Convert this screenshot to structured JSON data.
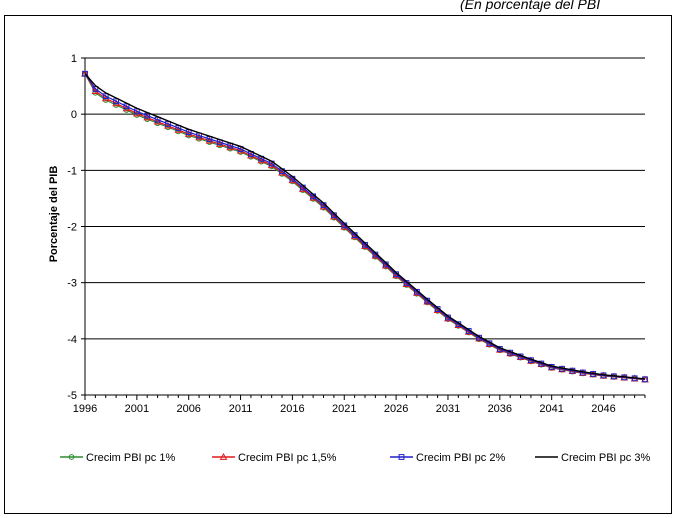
{
  "caption": "(En porcentaje del PBI",
  "chart_data": {
    "type": "line",
    "title": "",
    "xlabel": "",
    "ylabel": "Porcentaje del PIB",
    "xlim": [
      1996,
      2050
    ],
    "ylim": [
      -5,
      1
    ],
    "x_ticks": [
      1996,
      2001,
      2006,
      2011,
      2016,
      2021,
      2026,
      2031,
      2036,
      2041,
      2046
    ],
    "y_ticks": [
      1,
      0,
      -1,
      -2,
      -3,
      -4,
      -5
    ],
    "grid": "horizontal",
    "legend_position": "bottom",
    "anchors": {
      "x": [
        1996,
        1997,
        1998,
        2001,
        2006,
        2011,
        2014,
        2016,
        2019,
        2021,
        2024,
        2026,
        2029,
        2031,
        2034,
        2036,
        2039,
        2041,
        2044,
        2046,
        2050
      ],
      "base": [
        0.72,
        0.45,
        0.32,
        0.05,
        -0.32,
        -0.62,
        -0.88,
        -1.15,
        -1.62,
        -1.98,
        -2.5,
        -2.85,
        -3.32,
        -3.62,
        -3.98,
        -4.18,
        -4.38,
        -4.5,
        -4.6,
        -4.65,
        -4.72
      ]
    },
    "series": [
      {
        "name": "Crecim PBI pc 1%",
        "color": "#2e8b2e",
        "marker": "circle",
        "offset": -0.07
      },
      {
        "name": "Crecim PBI pc 1,5%",
        "color": "#e41a1a",
        "marker": "triangle",
        "offset": -0.04
      },
      {
        "name": "Crecim PBI pc 2%",
        "color": "#1f1fcc",
        "marker": "square",
        "offset": 0.0
      },
      {
        "name": "Crecim PBI pc 3%",
        "color": "#000000",
        "marker": "none",
        "offset": 0.06
      }
    ]
  }
}
